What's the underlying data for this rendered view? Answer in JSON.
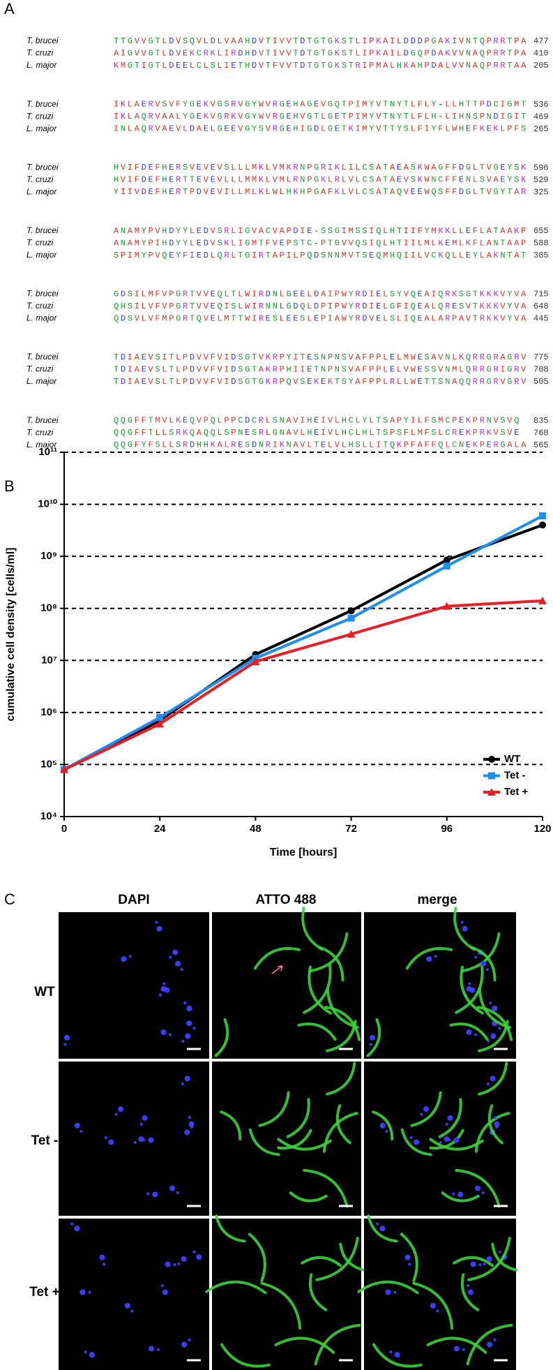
{
  "panel_labels": [
    "A",
    "B",
    "C"
  ],
  "alignment": {
    "blocks": [
      {
        "rows": [
          {
            "species": "T. brucei",
            "sequence": "TTGVVGTLDVSQVLDLVAAHDVTIVVTDTGTGKSTLIPKAILDDDPGAKIVNTQPRRTPA",
            "end": "477"
          },
          {
            "species": "T. cruzi",
            "sequence": "AIGVVGTLDVEKCRKLIRDHDVTIVVTDTGTGKSTLIPKAILDGQPDAKVVNAQPRRTPA",
            "end": "410"
          },
          {
            "species": "L. major",
            "sequence": "KMGTIGTLDEELCLSLIETHDVTFVVTDTGTGKSTRIPMALHKAHPDALVVNAQPRRTAA",
            "end": "205"
          }
        ]
      },
      {
        "rows": [
          {
            "species": "T. brucei",
            "sequence": "IKLAERVSVFYGEKVGSRVGYWVRGEHAGEVGQTPIMYVTNYTLFLY-LLHTTPDCIGMT",
            "end": "536"
          },
          {
            "species": "T. cruzi",
            "sequence": "IKLAQRVAALYGEKVGRKVGYWVRGEHVGTLGETPIMYVTNYTLFLH-LIHNSPNDIGIT",
            "end": "469"
          },
          {
            "species": "L. major",
            "sequence": "INLAQRVAEVLDAELGEEVGYSVRGEHIGDLGETKIMYVTTYSLFIYFLWHEFKEKLPFS",
            "end": "265"
          }
        ]
      },
      {
        "rows": [
          {
            "species": "T. brucei",
            "sequence": "HVIFDEFHERSVEVEVSLLLMKLVMKRNPGRIKLILCSATAEASKWAGFFDGLTVGEYSK",
            "end": "596"
          },
          {
            "species": "T. cruzi",
            "sequence": "HVIFDEFHERTTEVEVLLLMMKLVMLRNPGKLRLVLCSATAEVSKWNCFFENLSVAEYSK",
            "end": "529"
          },
          {
            "species": "L. major",
            "sequence": "YIIVDEFHERTPDVEVILLMLKLWLHKHPGAFKLVLCSATAQVEEWQSFFDGLTVGYTAR",
            "end": "325"
          }
        ]
      },
      {
        "rows": [
          {
            "species": "T. brucei",
            "sequence": "ANAMYPVHDYYLEDVSRLIGVACVAPDIE-SSGIMSSIQLHTIIFYMKKLLEFLATAAKP",
            "end": "655"
          },
          {
            "species": "T. cruzi",
            "sequence": "ANAMYPIHDYYLEDVSKLIGMTFVEPSTC-PTGVVQSIQLHTIILMLKEMLKFLANTAAP",
            "end": "588"
          },
          {
            "species": "L. major",
            "sequence": "SPIMYPVQEYFIEDLQRLTGIRTAPILPQDSNNMVTSEQMHQIILVCKQLLEYLAKNTAT",
            "end": "385"
          }
        ]
      },
      {
        "rows": [
          {
            "species": "T. brucei",
            "sequence": "GDSILMFVPGRTVVEQLTLWIRDNLGEELDAIPWYRDIELSYVQEAIQRKSGTKKKVYVA",
            "end": "715"
          },
          {
            "species": "T. cruzi",
            "sequence": "QHSILVFVPGRTVVEQISLWIRNNLGDQLDPIPWYRDIELGFIQEALQRESVTKKKVYVA",
            "end": "648"
          },
          {
            "species": "L. major",
            "sequence": "QDSVLVFMPGRTQVELMTTWIRESLEESLEPIAWYRDVELSLIQEALARPAVTRKKVYVA",
            "end": "445"
          }
        ]
      },
      {
        "rows": [
          {
            "species": "T. brucei",
            "sequence": "TDIAEVSITLPDVVFVIDSGTVKRPYITESNPNSVAFPPLELMWESAVNLKQRRGRAGRV",
            "end": "775"
          },
          {
            "species": "T. cruzi",
            "sequence": "TDIAEVSLTLPDVVFVIDSGTAKRPHIIETNPNSVAFPPLELVWESSVNMLQRRGRIGRV",
            "end": "708"
          },
          {
            "species": "L. major",
            "sequence": "TDIAEVSLTLPDVVFVIDSGTGKRPQVSEKEKTSYAFPPLRLLWETTSNAQQRRGRVGRV",
            "end": "505"
          }
        ]
      },
      {
        "rows": [
          {
            "species": "T. brucei",
            "sequence": "QQGFFTMVLKEQVPQLPPCDCRLSNAVIHEIVLHCLYLTSAPYILFSMCPEKPRNVSVQ",
            "end": "835"
          },
          {
            "species": "T. cruzi",
            "sequence": "QQGFFTLLSRKQAQQLSPNESRLGNAVLHEIVLHCLHLTSPSFLMFSLCREKPRKVSVE",
            "end": "768"
          },
          {
            "species": "L. major",
            "sequence": "QQGFYFSLLSRDHHKALRESDNRIKNAVLTELVLHSLLITQKPFAFFQLCNEKPERGALA",
            "end": "565"
          }
        ]
      }
    ]
  },
  "chart_data": {
    "type": "line",
    "x_label": "Time [hours]",
    "y_label": "cumulative cell density [cells/ml]",
    "x": [
      0,
      24,
      48,
      72,
      96,
      120
    ],
    "xlim": [
      0,
      120
    ],
    "xticks": [
      0,
      24,
      48,
      72,
      96,
      120
    ],
    "ylim": [
      10000,
      100000000000
    ],
    "y_scale": "log",
    "yticks": [
      {
        "value": 10000,
        "label": "10⁴"
      },
      {
        "value": 100000,
        "label": "10⁵"
      },
      {
        "value": 1000000,
        "label": "10⁶"
      },
      {
        "value": 10000000,
        "label": "10⁷"
      },
      {
        "value": 100000000,
        "label": "10⁸"
      },
      {
        "value": 1000000000,
        "label": "10⁹"
      },
      {
        "value": 10000000000,
        "label": "10¹⁰"
      },
      {
        "value": 100000000000,
        "label": "10¹¹"
      }
    ],
    "grid": true,
    "legend": "lower right",
    "series": [
      {
        "name": "WT",
        "color": "#000000",
        "marker": "circle",
        "values": [
          80000,
          700000,
          13000000,
          90000000,
          850000000,
          4000000000
        ]
      },
      {
        "name": "Tet -",
        "color": "#1e8ff0",
        "marker": "square",
        "values": [
          80000,
          800000,
          11000000,
          65000000,
          650000000,
          6000000000
        ]
      },
      {
        "name": "Tet +",
        "color": "#ec1c24",
        "marker": "triangle",
        "values": [
          80000,
          600000,
          9500000,
          32000000,
          110000000,
          140000000
        ]
      }
    ]
  },
  "micrographs": {
    "columns": [
      "DAPI",
      "ATTO 488",
      "merge"
    ],
    "rows": [
      "WT",
      "Tet -",
      "Tet +"
    ]
  }
}
